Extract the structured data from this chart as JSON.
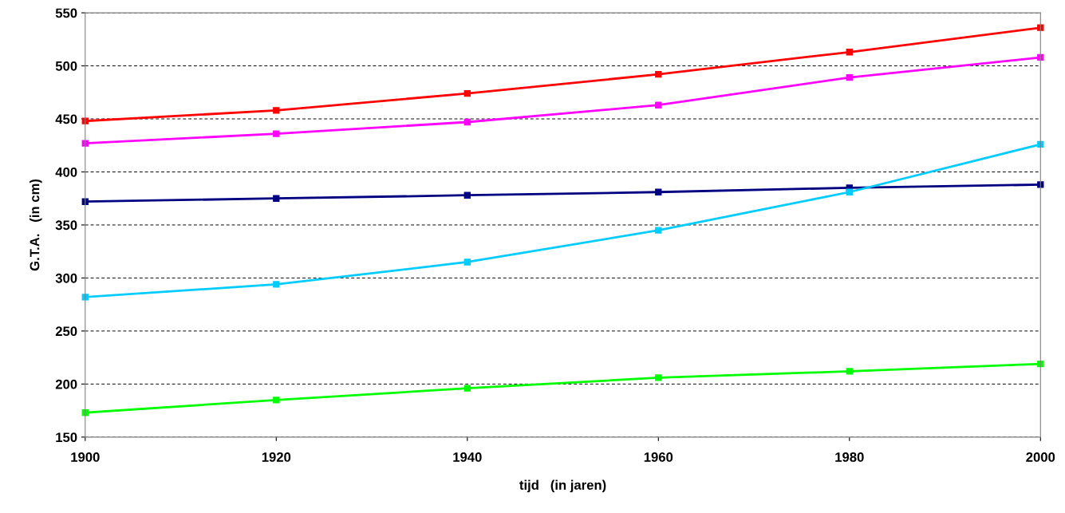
{
  "chart_data": {
    "type": "line",
    "xlabel": "tijd   (in jaren)",
    "ylabel": "G.T.A.   (in cm)",
    "x": [
      1900,
      1920,
      1940,
      1960,
      1980,
      2000
    ],
    "series": [
      {
        "color": "#ff0000",
        "values": [
          448,
          458,
          474,
          492,
          513,
          536
        ]
      },
      {
        "color": "#ff00ff",
        "values": [
          427,
          436,
          447,
          463,
          489,
          508
        ]
      },
      {
        "color": "#000080",
        "values": [
          372,
          375,
          378,
          381,
          385,
          388
        ]
      },
      {
        "color": "#00ccff",
        "values": [
          282,
          294,
          315,
          345,
          381,
          426
        ]
      },
      {
        "color": "#00ff00",
        "values": [
          173,
          185,
          196,
          206,
          212,
          219
        ]
      }
    ],
    "xlim": [
      1900,
      2000
    ],
    "xticks": [
      1900,
      1920,
      1940,
      1960,
      1980,
      2000
    ],
    "ylim": [
      150,
      550
    ],
    "yticks": [
      150,
      200,
      250,
      300,
      350,
      400,
      450,
      500,
      550
    ],
    "grid": "y",
    "marker": "square",
    "line_style": "solid",
    "legend": false
  }
}
